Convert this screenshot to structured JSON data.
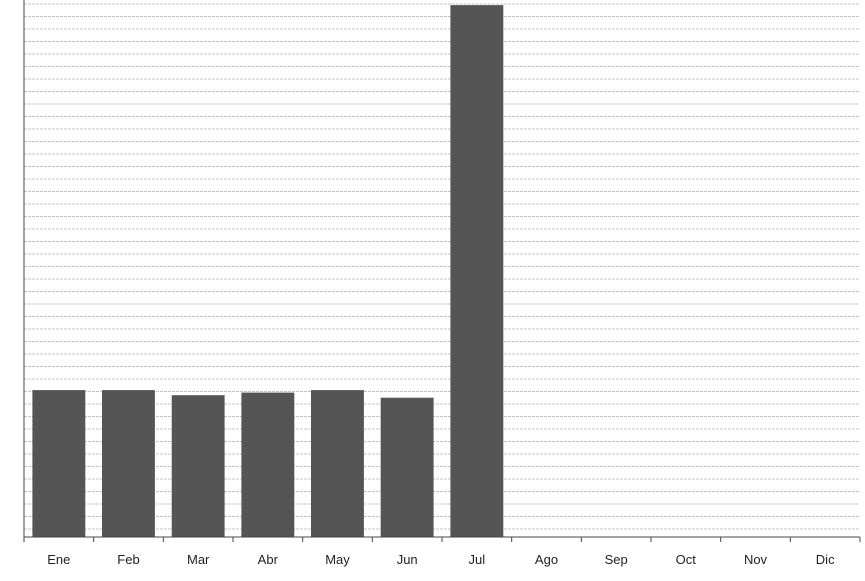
{
  "chart_data": {
    "type": "bar",
    "title": "",
    "xlabel": "",
    "ylabel": "",
    "categories": [
      "Ene",
      "Feb",
      "Mar",
      "Abr",
      "May",
      "Jun",
      "Jul",
      "Ago",
      "Sep",
      "Oct",
      "Nov",
      "Dic"
    ],
    "values": [
      29,
      29,
      28,
      28.5,
      29,
      27.5,
      105,
      null,
      null,
      null,
      null,
      null
    ],
    "ylim": [
      0,
      106
    ],
    "grid": true,
    "legend": "none",
    "bar_color": "#555555"
  }
}
